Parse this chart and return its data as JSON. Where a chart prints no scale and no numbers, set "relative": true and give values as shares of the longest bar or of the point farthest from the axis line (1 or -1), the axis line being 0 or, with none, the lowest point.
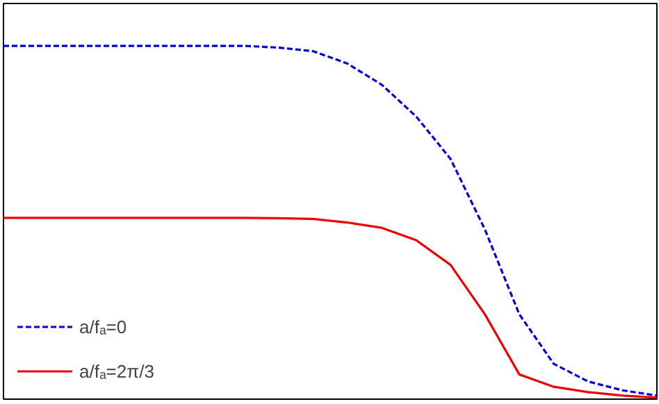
{
  "chart_data": {
    "type": "line",
    "relative": true,
    "tick_labels": false,
    "grid": false,
    "legend": "bottom left",
    "marker": "none",
    "categories": [
      null,
      null,
      null,
      null,
      null,
      null,
      null,
      null,
      null,
      null,
      null,
      null,
      null,
      null,
      null,
      null,
      null,
      null,
      null,
      null
    ],
    "series": [
      {
        "name": "a/fₐ=0",
        "color": "#0000dd",
        "line_style": "dashed",
        "values": [
          1,
          1,
          1,
          1,
          1,
          1,
          1,
          1,
          0.995,
          0.985,
          0.95,
          0.89,
          0.8,
          0.68,
          0.48,
          0.24,
          0.1,
          0.05,
          0.025,
          0.01
        ]
      },
      {
        "name": "a/fₐ=2π/3",
        "color": "#ee0000",
        "line_style": "solid",
        "values": [
          0.513,
          0.513,
          0.513,
          0.513,
          0.513,
          0.513,
          0.513,
          0.513,
          0.512,
          0.51,
          0.5,
          0.485,
          0.45,
          0.38,
          0.24,
          0.07,
          0.035,
          0.02,
          0.01,
          0.004
        ]
      }
    ]
  }
}
